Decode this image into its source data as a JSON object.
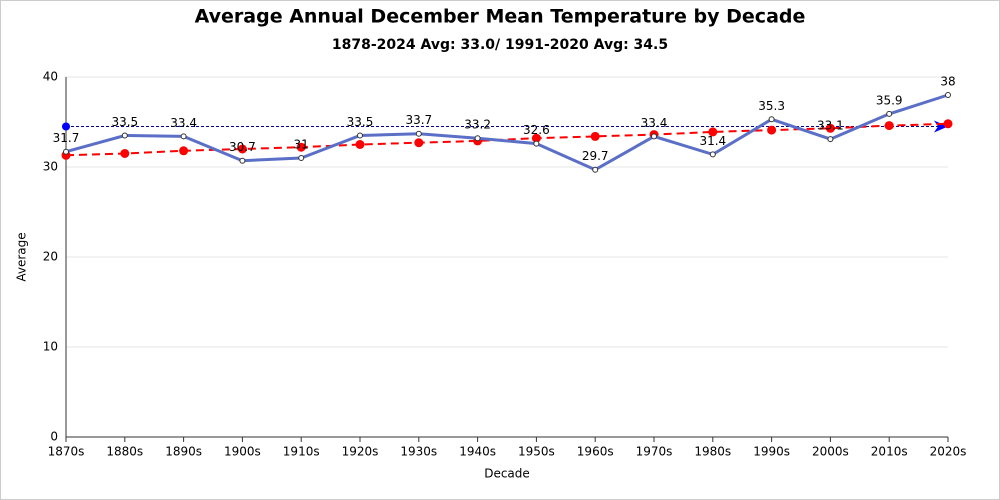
{
  "chart_data": {
    "type": "line",
    "title": "Average Annual December Mean Temperature by Decade",
    "subtitle": "1878-2024 Avg: 33.0/ 1991-2020 Avg: 34.5",
    "x_label": "Decade",
    "y_label": "Average",
    "categories": [
      "1870s",
      "1880s",
      "1890s",
      "1900s",
      "1910s",
      "1920s",
      "1930s",
      "1940s",
      "1950s",
      "1960s",
      "1970s",
      "1980s",
      "1990s",
      "2000s",
      "2010s",
      "2020s"
    ],
    "series": [
      {
        "color": "#5b6fc7",
        "style": "solid",
        "data_labels": true,
        "values": [
          31.7,
          33.5,
          33.4,
          30.7,
          31,
          33.5,
          33.7,
          33.2,
          32.6,
          29.7,
          33.4,
          31.4,
          35.3,
          33.1,
          35.9,
          38
        ]
      },
      {
        "color": "#ff0000",
        "style": "dashed",
        "data_labels": false,
        "values": [
          31.3,
          31.5,
          31.8,
          32.0,
          32.2,
          32.5,
          32.7,
          32.9,
          33.2,
          33.4,
          33.6,
          33.9,
          34.1,
          34.3,
          34.6,
          34.8
        ]
      }
    ],
    "reference_line": {
      "value": 34.5,
      "color": "#00008b"
    },
    "ylim": [
      0,
      40
    ],
    "yticks": [
      0,
      10,
      20,
      30,
      40
    ],
    "grid": true
  }
}
